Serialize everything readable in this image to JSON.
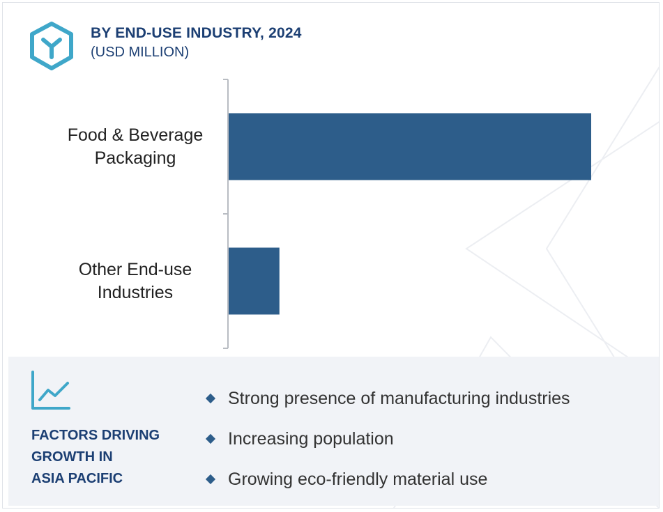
{
  "header": {
    "title": "BY END-USE INDUSTRY, 2024",
    "subtitle": "(USD MILLION)",
    "logo_icon": "cube-y-icon"
  },
  "chart_data": {
    "type": "bar",
    "orientation": "horizontal",
    "title": "BY END-USE INDUSTRY, 2024",
    "subtitle": "(USD MILLION)",
    "categories": [
      "Food & Beverage Packaging",
      "Other End-use Industries"
    ],
    "category_lines": [
      [
        "Food & Beverage",
        "Packaging"
      ],
      [
        "Other End-use",
        "Industries"
      ]
    ],
    "values": [
      100,
      14
    ],
    "value_scale": "relative (no axis values printed)",
    "xlim": [
      0,
      100
    ],
    "bar_color": "#2d5d8a",
    "grid": false,
    "legend": "none"
  },
  "factors": {
    "icon": "line-chart-icon",
    "heading_lines": [
      "FACTORS DRIVING",
      "GROWTH IN",
      "ASIA PACIFIC"
    ],
    "items": [
      "Strong presence of manufacturing industries",
      "Increasing population",
      "Growing eco-friendly material use"
    ]
  },
  "colors": {
    "accent_teal": "#3fa7c9",
    "title_navy": "#1c3f73",
    "bar_blue": "#2d5d8a",
    "panel_bg": "#f1f3f7"
  }
}
